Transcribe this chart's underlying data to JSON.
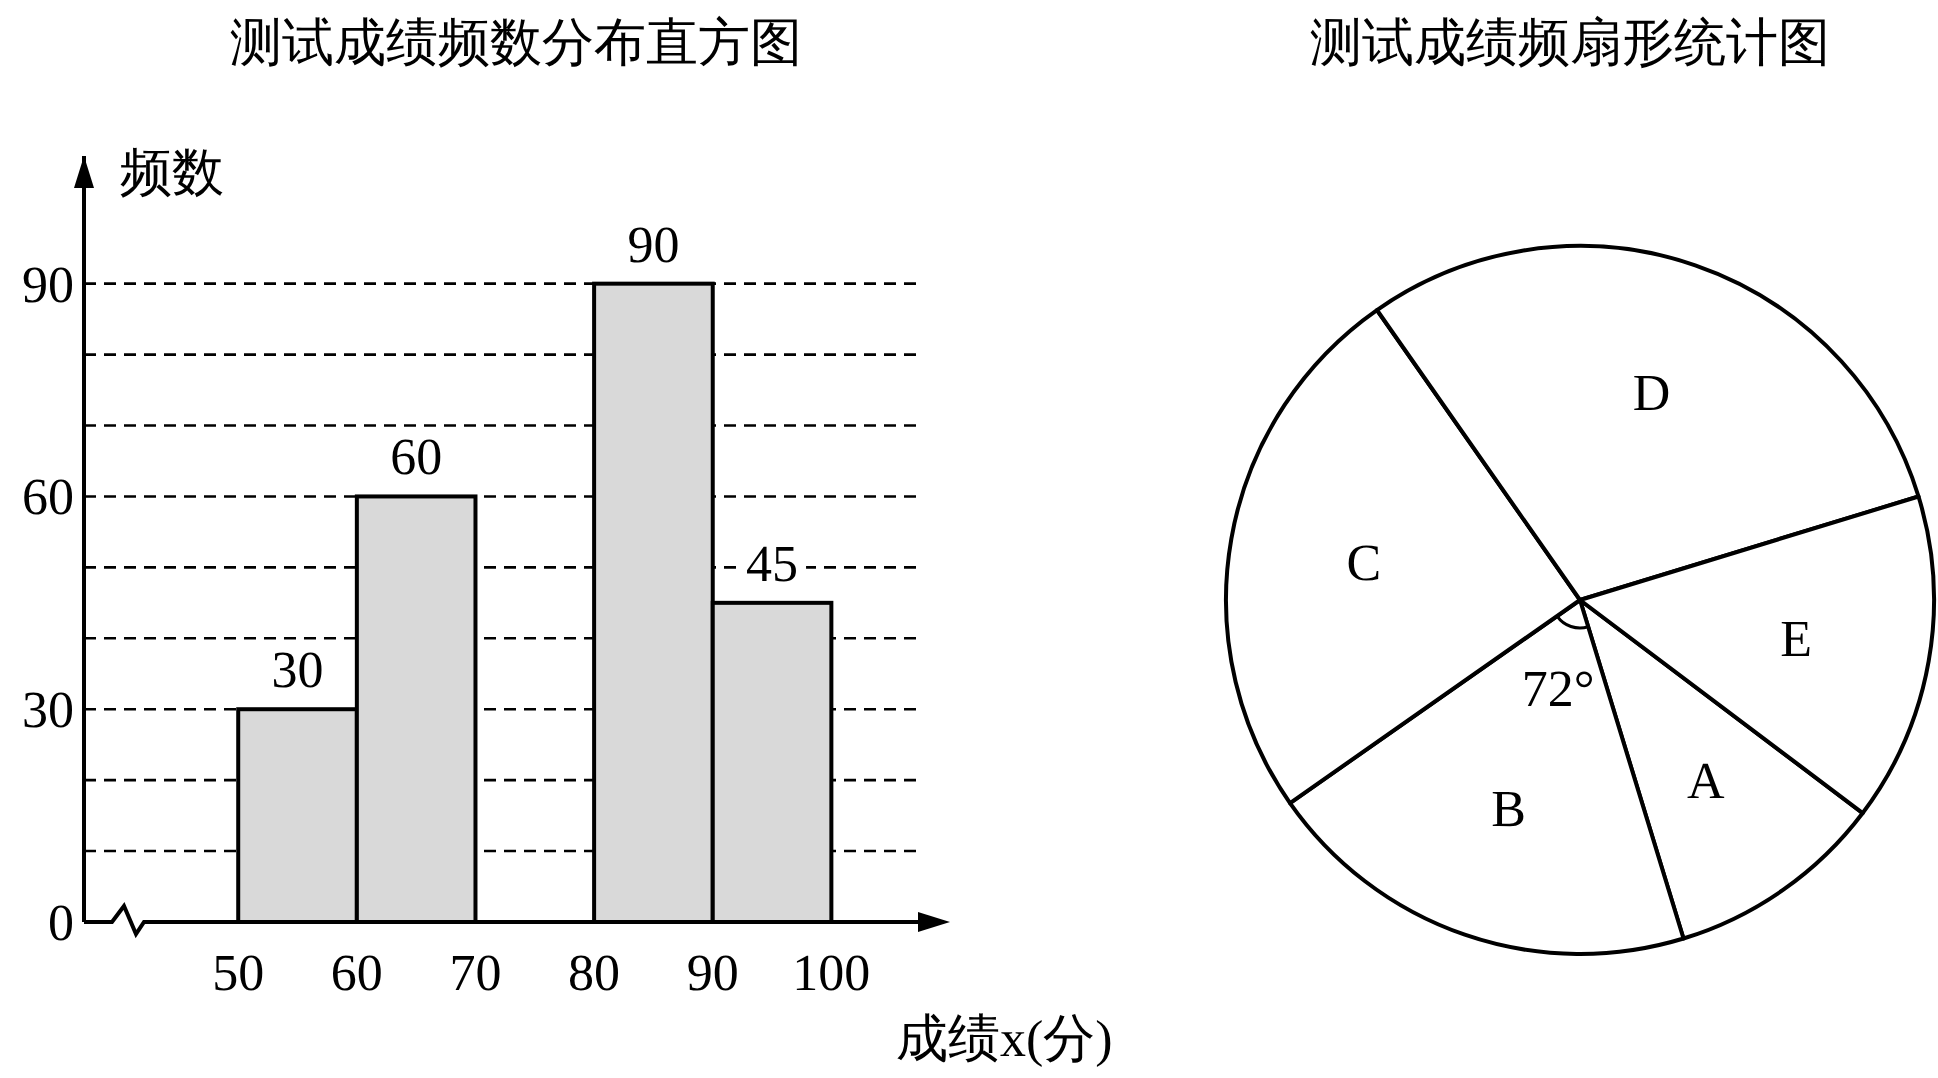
{
  "chart_data": [
    {
      "type": "histogram",
      "title": "测试成绩频数分布直方图",
      "xlabel": "成绩x(分)",
      "ylabel": "频数",
      "bins": [
        50,
        60,
        70,
        80,
        90,
        100
      ],
      "values": [
        30,
        60,
        null,
        90,
        45
      ],
      "color": "#d9d9d9",
      "xlim": [
        37,
        110
      ],
      "ylim": [
        0,
        108
      ],
      "xticks": [
        50,
        60,
        70,
        80,
        90,
        100
      ],
      "yticks": [
        0,
        {
          "value": 10,
          "label": null
        },
        {
          "value": 20,
          "label": null
        },
        30,
        {
          "value": 40,
          "label": null
        },
        {
          "value": 50,
          "label": null
        },
        60,
        {
          "value": 70,
          "label": null
        },
        {
          "value": 80,
          "label": null
        },
        90
      ],
      "grid": "y",
      "data_labels": true
    },
    {
      "type": "pie",
      "title": "测试成绩频扇形统计图",
      "categories": [
        "A",
        "B",
        "C",
        "D",
        "E"
      ],
      "values": [
        10,
        20,
        25,
        30,
        15
      ],
      "colors": [
        "#ffffff",
        "#ffffff",
        "#ffffff",
        "#ffffff",
        "#ffffff"
      ],
      "annotations": [
        "72°"
      ]
    }
  ]
}
